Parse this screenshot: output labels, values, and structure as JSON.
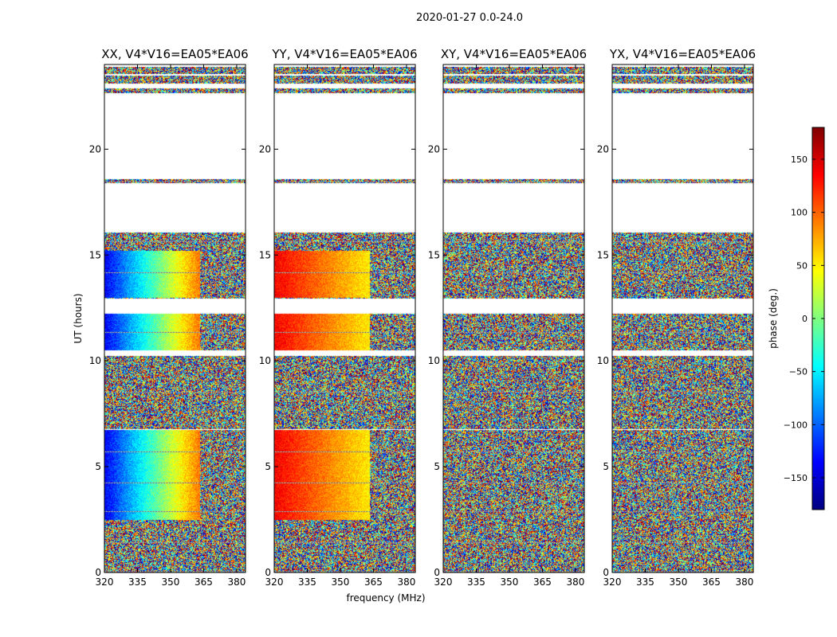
{
  "figure": {
    "suptitle": "2020-01-27 0.0-24.0"
  },
  "chart_data": {
    "type": "heatmap",
    "xlabel": "frequency (MHz)",
    "ylabel": "UT (hours)",
    "xlim": [
      320,
      384
    ],
    "ylim": [
      0,
      24
    ],
    "xticks": [
      320,
      335,
      350,
      365,
      380
    ],
    "yticks": [
      0,
      5,
      10,
      15,
      20
    ],
    "colorbar": {
      "label": "phase (deg.)",
      "range": [
        -180,
        180
      ],
      "ticks": [
        -150,
        -100,
        -50,
        0,
        50,
        100,
        150
      ],
      "colormap": "jet",
      "colors": [
        "#00007f",
        "#0000ff",
        "#007fff",
        "#00ffff",
        "#7fff7f",
        "#ffff00",
        "#ff7f00",
        "#ff0000",
        "#7f0000"
      ]
    },
    "panels": [
      {
        "title": "XX, V4*V16=EA05*EA06",
        "pattern": "smooth_blue_to_red"
      },
      {
        "title": "YY, V4*V16=EA05*EA06",
        "pattern": "smooth_red_to_yellow"
      },
      {
        "title": "XY, V4*V16=EA05*EA06",
        "pattern": "noise"
      },
      {
        "title": "YX, V4*V16=EA05*EA06",
        "pattern": "noise"
      }
    ],
    "data_gaps_hours": [
      [
        6.75,
        6.8
      ],
      [
        10.25,
        10.5
      ],
      [
        12.25,
        12.95
      ],
      [
        16.1,
        18.4
      ],
      [
        18.6,
        22.65
      ],
      [
        22.9,
        23.1
      ],
      [
        23.5,
        23.55
      ],
      [
        23.9,
        24.0
      ]
    ],
    "flagged_channel_regions_mhz": [
      [
        363.5,
        384
      ]
    ]
  }
}
